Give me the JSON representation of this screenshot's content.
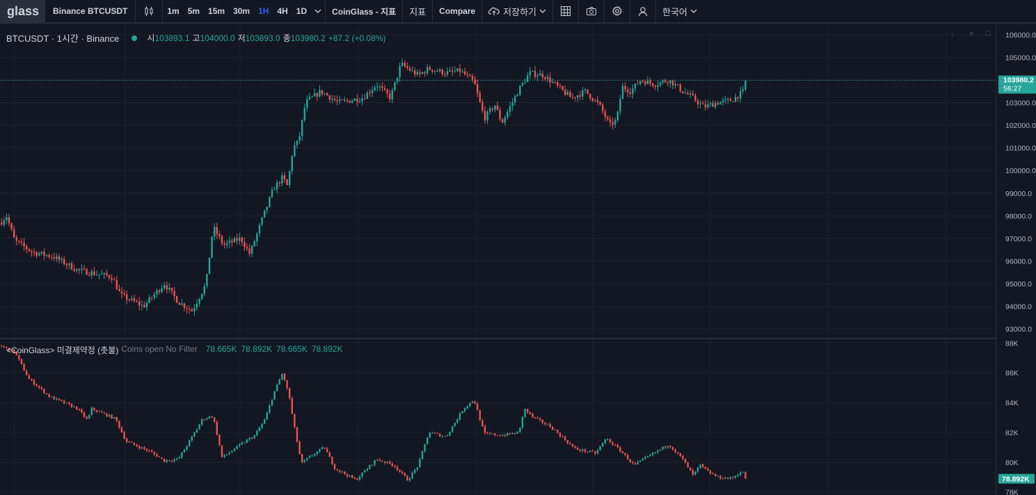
{
  "toolbar": {
    "logo": "glass",
    "symbol": "Binance BTCUSDT",
    "intervals": [
      "1m",
      "5m",
      "15m",
      "30m",
      "1H",
      "4H",
      "1D"
    ],
    "active_interval": "1H",
    "indicators_source": "CoinGlass - 지표",
    "indicators": "지표",
    "compare": "Compare",
    "save": "저장하기",
    "language": "한국어"
  },
  "legend": {
    "symbol": "BTCUSDT · 1시간 · Binance",
    "open_label": "시",
    "open": "103893.1",
    "high_label": "고",
    "high": "104000.0",
    "low_label": "저",
    "low": "103893.0",
    "close_label": "종",
    "close": "103980.2",
    "change": "+87.2 (+0.08%)"
  },
  "oi_legend": {
    "name": "<CoinGlass> 미결제약정 (촛불)",
    "sub": "Coins open No Filter",
    "values": [
      "78.665K",
      "78.892K",
      "78.665K",
      "78.892K"
    ]
  },
  "price_axis": {
    "ticks": [
      "106000.0",
      "105000.0",
      "104000.0",
      "103000.0",
      "102000.0",
      "101000.0",
      "100000.0",
      "99000.0",
      "98000.0",
      "97000.0",
      "96000.0",
      "95000.0",
      "94000.0",
      "93000.0"
    ],
    "last_price": "103980.2",
    "countdown": "56:27"
  },
  "oi_axis": {
    "ticks": [
      "88K",
      "86K",
      "84K",
      "82K",
      "80K",
      "78K"
    ],
    "last_value": "78.892K"
  },
  "colors": {
    "up": "#26a69a",
    "down": "#ef5350",
    "background": "#131722",
    "grid": "#1e222d",
    "accent": "#2962ff"
  },
  "chart_data": [
    {
      "type": "candlestick",
      "title": "BTCUSDT · 1시간 · Binance",
      "ylim": [
        92700,
        106300
      ],
      "last_close": 103980.2,
      "path_keypoints": [
        [
          0,
          97700
        ],
        [
          8,
          98000
        ],
        [
          20,
          96900
        ],
        [
          45,
          96400
        ],
        [
          75,
          96200
        ],
        [
          110,
          95600
        ],
        [
          160,
          95300
        ],
        [
          172,
          94500
        ],
        [
          205,
          94000
        ],
        [
          235,
          95000
        ],
        [
          255,
          94200
        ],
        [
          275,
          93800
        ],
        [
          295,
          95000
        ],
        [
          305,
          97500
        ],
        [
          320,
          96700
        ],
        [
          345,
          97000
        ],
        [
          358,
          96300
        ],
        [
          375,
          97800
        ],
        [
          392,
          99200
        ],
        [
          405,
          99700
        ],
        [
          412,
          99300
        ],
        [
          420,
          101000
        ],
        [
          428,
          101300
        ],
        [
          438,
          103000
        ],
        [
          460,
          103500
        ],
        [
          485,
          103000
        ],
        [
          520,
          103200
        ],
        [
          540,
          103800
        ],
        [
          560,
          103200
        ],
        [
          575,
          104700
        ],
        [
          600,
          104200
        ],
        [
          615,
          104500
        ],
        [
          640,
          104300
        ],
        [
          660,
          104400
        ],
        [
          680,
          103900
        ],
        [
          695,
          102300
        ],
        [
          710,
          102900
        ],
        [
          720,
          102100
        ],
        [
          735,
          103000
        ],
        [
          745,
          103600
        ],
        [
          760,
          104300
        ],
        [
          780,
          104200
        ],
        [
          800,
          103700
        ],
        [
          820,
          103200
        ],
        [
          840,
          103500
        ],
        [
          860,
          102900
        ],
        [
          875,
          102000
        ],
        [
          885,
          102200
        ],
        [
          893,
          103700
        ],
        [
          905,
          103500
        ],
        [
          920,
          104000
        ],
        [
          940,
          103800
        ],
        [
          960,
          104000
        ],
        [
          980,
          103500
        ],
        [
          995,
          103200
        ],
        [
          1010,
          102800
        ],
        [
          1030,
          103000
        ],
        [
          1050,
          103100
        ],
        [
          1068,
          103500
        ],
        [
          1072,
          103980
        ]
      ]
    },
    {
      "type": "candlestick",
      "title": "<CoinGlass> 미결제약정 (촛불)",
      "ylim": [
        77800,
        88200
      ],
      "last_close": 78892,
      "path_keypoints": [
        [
          0,
          87800
        ],
        [
          20,
          87400
        ],
        [
          40,
          85600
        ],
        [
          70,
          84400
        ],
        [
          110,
          83600
        ],
        [
          125,
          82800
        ],
        [
          130,
          83600
        ],
        [
          165,
          82900
        ],
        [
          180,
          81400
        ],
        [
          215,
          80700
        ],
        [
          235,
          80100
        ],
        [
          255,
          80200
        ],
        [
          275,
          81700
        ],
        [
          290,
          82900
        ],
        [
          305,
          83100
        ],
        [
          318,
          80300
        ],
        [
          345,
          81200
        ],
        [
          365,
          81800
        ],
        [
          380,
          82900
        ],
        [
          392,
          84600
        ],
        [
          405,
          86000
        ],
        [
          415,
          84300
        ],
        [
          420,
          82800
        ],
        [
          432,
          79900
        ],
        [
          445,
          80400
        ],
        [
          465,
          81000
        ],
        [
          480,
          79600
        ],
        [
          510,
          78800
        ],
        [
          540,
          80200
        ],
        [
          565,
          79800
        ],
        [
          585,
          78800
        ],
        [
          600,
          79800
        ],
        [
          615,
          82000
        ],
        [
          640,
          81700
        ],
        [
          665,
          83600
        ],
        [
          680,
          84200
        ],
        [
          695,
          81900
        ],
        [
          720,
          81800
        ],
        [
          745,
          82000
        ],
        [
          752,
          83600
        ],
        [
          765,
          83000
        ],
        [
          790,
          82400
        ],
        [
          825,
          80900
        ],
        [
          855,
          80600
        ],
        [
          870,
          81600
        ],
        [
          890,
          80800
        ],
        [
          910,
          79800
        ],
        [
          935,
          80500
        ],
        [
          960,
          81200
        ],
        [
          980,
          80200
        ],
        [
          995,
          79100
        ],
        [
          1005,
          79800
        ],
        [
          1015,
          79400
        ],
        [
          1030,
          79000
        ],
        [
          1050,
          78900
        ],
        [
          1065,
          79400
        ],
        [
          1072,
          78892
        ]
      ]
    }
  ]
}
